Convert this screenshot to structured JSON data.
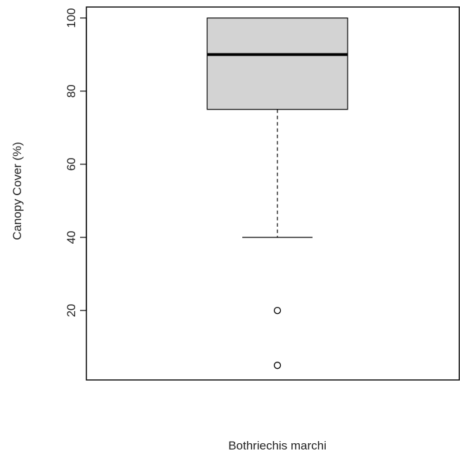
{
  "chart_data": {
    "type": "box",
    "categories": [
      "Bothriechis marchi"
    ],
    "xlabel": "Bothriechis marchi",
    "ylabel": "Canopy Cover (%)",
    "ylim": [
      1,
      103
    ],
    "yticks": [
      20,
      40,
      60,
      80,
      100
    ],
    "grid": false,
    "series": [
      {
        "whisker_low": 40,
        "q1": 75,
        "median": 90,
        "q3": 100,
        "whisker_high": 100,
        "outliers": [
          20,
          5
        ]
      }
    ]
  },
  "colors": {
    "box_fill": "#d3d3d3",
    "stroke": "#000000",
    "text": "#222222"
  }
}
